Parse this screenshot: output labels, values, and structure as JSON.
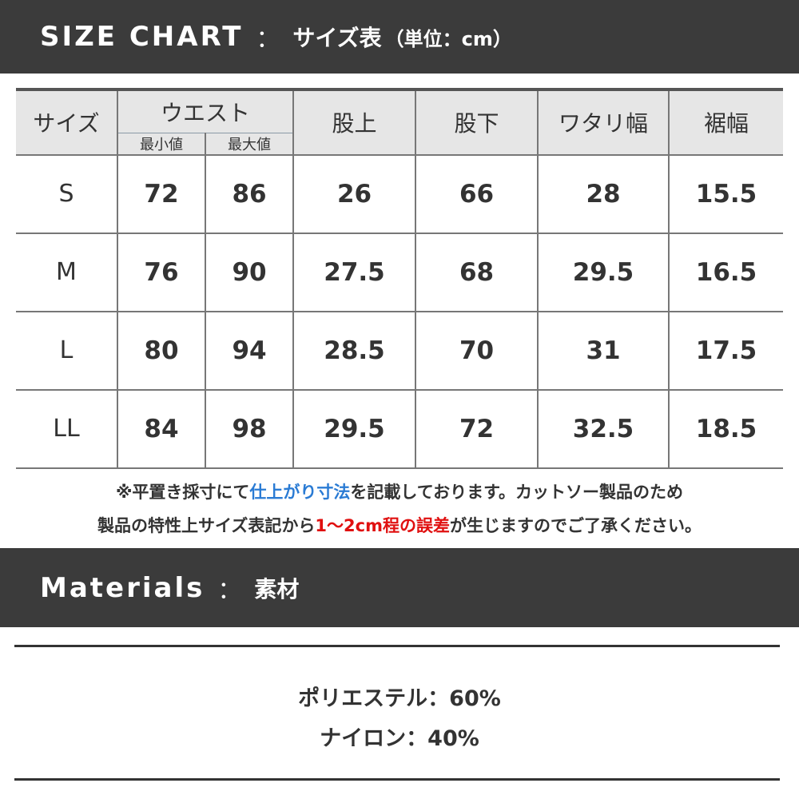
{
  "header": {
    "title_en": "SIZE CHART",
    "separator": "：",
    "title_jp": "サイズ表",
    "unit": "（単位：cm）"
  },
  "table": {
    "headers": {
      "size": "サイズ",
      "waist": "ウエスト",
      "waist_min": "最小値",
      "waist_max": "最大値",
      "rise": "股上",
      "inseam": "股下",
      "thigh": "ワタリ幅",
      "hem": "裾幅"
    },
    "rows": [
      [
        "S",
        "72",
        "86",
        "26",
        "66",
        "28",
        "15.5"
      ],
      [
        "M",
        "76",
        "90",
        "27.5",
        "68",
        "29.5",
        "16.5"
      ],
      [
        "L",
        "80",
        "94",
        "28.5",
        "70",
        "31",
        "17.5"
      ],
      [
        "LL",
        "84",
        "98",
        "29.5",
        "72",
        "32.5",
        "18.5"
      ]
    ]
  },
  "note": {
    "line1_a": "※平置き採寸にて",
    "line1_b": "仕上がり寸法",
    "line1_c": "を記載しております。カットソー製品のため",
    "line2_a": "製品の特性上サイズ表記から",
    "line2_b": "1〜2cm程の誤差",
    "line2_c": "が生じますのでご了承ください。",
    "highlight_blue": "#2a7bd4",
    "highlight_red": "#e01010"
  },
  "materials": {
    "title_en": "Materials",
    "separator": "：",
    "title_jp": "素材",
    "items": [
      {
        "name": "ポリエステル",
        "value": "60%"
      },
      {
        "name": "ナイロン",
        "value": "40%"
      }
    ]
  }
}
